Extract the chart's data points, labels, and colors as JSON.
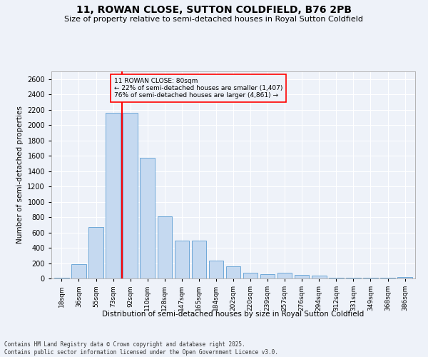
{
  "title": "11, ROWAN CLOSE, SUTTON COLDFIELD, B76 2PB",
  "subtitle": "Size of property relative to semi-detached houses in Royal Sutton Coldfield",
  "xlabel": "Distribution of semi-detached houses by size in Royal Sutton Coldfield",
  "ylabel": "Number of semi-detached properties",
  "categories": [
    "18sqm",
    "36sqm",
    "55sqm",
    "73sqm",
    "92sqm",
    "110sqm",
    "128sqm",
    "147sqm",
    "165sqm",
    "184sqm",
    "202sqm",
    "220sqm",
    "239sqm",
    "257sqm",
    "276sqm",
    "294sqm",
    "312sqm",
    "331sqm",
    "349sqm",
    "368sqm",
    "386sqm"
  ],
  "values": [
    10,
    185,
    670,
    2160,
    2160,
    1570,
    810,
    490,
    490,
    235,
    160,
    75,
    60,
    75,
    45,
    35,
    10,
    5,
    10,
    5,
    15
  ],
  "bar_color": "#c5d9f0",
  "bar_edge_color": "#6ea8d8",
  "red_line_bin": 3,
  "annotation_title": "11 ROWAN CLOSE: 80sqm",
  "annotation_line1": "← 22% of semi-detached houses are smaller (1,407)",
  "annotation_line2": "76% of semi-detached houses are larger (4,861) →",
  "background_color": "#eef2f9",
  "grid_color": "#ffffff",
  "footer_line1": "Contains HM Land Registry data © Crown copyright and database right 2025.",
  "footer_line2": "Contains public sector information licensed under the Open Government Licence v3.0.",
  "ylim": [
    0,
    2700
  ],
  "yticks": [
    0,
    200,
    400,
    600,
    800,
    1000,
    1200,
    1400,
    1600,
    1800,
    2000,
    2200,
    2400,
    2600
  ]
}
